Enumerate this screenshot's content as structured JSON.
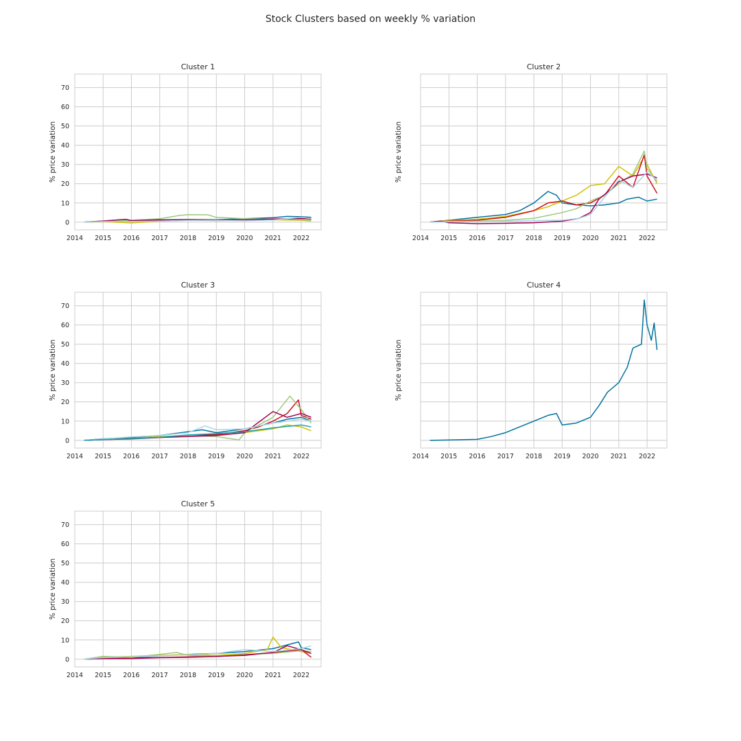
{
  "figure": {
    "title": "Stock Clusters based on weekly % variation"
  },
  "style": {
    "palette": [
      "#0173b2",
      "#de8f05",
      "#029e73",
      "#d55e00",
      "#cc78bc"
    ],
    "series_colors": [
      "#00719e",
      "#d1c000",
      "#cc0f1c",
      "#9fc77c",
      "#a40051",
      "#a6d6e6",
      "#16a1b6",
      "#e7a013"
    ],
    "grid_color": "#cccccc",
    "grid": true
  },
  "chart_data": [
    {
      "type": "line",
      "title": "Cluster 1",
      "ylabel": "% price variation",
      "xlabel": "",
      "xlim": [
        2014,
        2022.7
      ],
      "ylim": [
        -4,
        77
      ],
      "xticks": [
        "2014",
        "2015",
        "2016",
        "2017",
        "2018",
        "2019",
        "2020",
        "2021",
        "2022"
      ],
      "yticks": [
        "0",
        "10",
        "20",
        "30",
        "40",
        "50",
        "60",
        "70"
      ],
      "show_yticklabels": true,
      "series": [
        {
          "color": "#00719e",
          "x": [
            2014.33,
            2015,
            2016,
            2017,
            2018,
            2019,
            2020,
            2021,
            2021.5,
            2022,
            2022.35
          ],
          "values": [
            0,
            0.6,
            0.9,
            1.2,
            1.4,
            1.3,
            1.8,
            2.3,
            3.0,
            2.8,
            2.5
          ]
        },
        {
          "color": "#d1c000",
          "x": [
            2014.33,
            2015,
            2016,
            2017,
            2018,
            2019,
            2020,
            2021,
            2022,
            2022.35
          ],
          "values": [
            0,
            0.2,
            -0.4,
            0.5,
            1.0,
            0.8,
            0.9,
            1.2,
            1.0,
            0.6
          ]
        },
        {
          "color": "#cc0f1c",
          "x": [
            2014.33,
            2015,
            2016,
            2017,
            2018,
            2019,
            2020,
            2021,
            2022,
            2022.35
          ],
          "values": [
            0,
            0.4,
            0.8,
            1.0,
            1.3,
            1.1,
            1.0,
            1.5,
            2.0,
            1.6
          ]
        },
        {
          "color": "#9fc77c",
          "x": [
            2014.33,
            2015,
            2016,
            2017,
            2017.7,
            2018,
            2018.7,
            2019,
            2020,
            2021,
            2022,
            2022.35
          ],
          "values": [
            0,
            0.5,
            1.0,
            1.8,
            3.5,
            3.9,
            3.8,
            2.5,
            1.8,
            1.5,
            1.2,
            1.0
          ]
        },
        {
          "color": "#a40051",
          "x": [
            2014.33,
            2015,
            2015.8,
            2016,
            2017,
            2018,
            2019,
            2020,
            2021,
            2022,
            2022.35
          ],
          "values": [
            0,
            0.6,
            1.5,
            0.8,
            1.2,
            1.0,
            0.9,
            1.2,
            1.6,
            1.9,
            1.8
          ]
        },
        {
          "color": "#a6d6e6",
          "x": [
            2014.33,
            2015,
            2016,
            2017,
            2018,
            2019,
            2020,
            2021,
            2022,
            2022.35
          ],
          "values": [
            0,
            0.3,
            0.4,
            0.6,
            0.9,
            1.0,
            0.7,
            1.1,
            2.5,
            1.9
          ]
        }
      ]
    },
    {
      "type": "line",
      "title": "Cluster 2",
      "ylabel": "% price variation",
      "xlabel": "",
      "xlim": [
        2014,
        2022.7
      ],
      "ylim": [
        -4,
        77
      ],
      "xticks": [
        "2014",
        "2015",
        "2016",
        "2017",
        "2018",
        "2019",
        "2020",
        "2021",
        "2022"
      ],
      "yticks": [],
      "show_yticklabels": false,
      "series": [
        {
          "color": "#00719e",
          "x": [
            2014.33,
            2015,
            2016,
            2017,
            2017.5,
            2018,
            2018.5,
            2018.8,
            2019,
            2019.5,
            2020,
            2020.5,
            2021,
            2021.3,
            2021.7,
            2022,
            2022.35
          ],
          "values": [
            0,
            1.0,
            2.5,
            4.0,
            6.0,
            10.0,
            16.0,
            14.0,
            10.0,
            9.0,
            8.5,
            9.0,
            10.0,
            12.0,
            13.0,
            11.0,
            12.0
          ]
        },
        {
          "color": "#d1c000",
          "x": [
            2014.33,
            2015,
            2016,
            2017,
            2018,
            2018.5,
            2019,
            2019.5,
            2020,
            2020.5,
            2021,
            2021.5,
            2021.9,
            2022,
            2022.35
          ],
          "values": [
            0,
            0.8,
            1.5,
            3.0,
            6.0,
            8.0,
            11.0,
            14.0,
            19.0,
            20.0,
            29.0,
            24.0,
            34.0,
            30.0,
            20.0
          ]
        },
        {
          "color": "#cc0f1c",
          "x": [
            2014.33,
            2015,
            2016,
            2017,
            2018,
            2018.5,
            2019,
            2019.5,
            2020,
            2020.5,
            2021,
            2021.5,
            2021.9,
            2022,
            2022.35
          ],
          "values": [
            0,
            0.5,
            1.0,
            2.5,
            6.0,
            10.0,
            11.0,
            9.0,
            10.0,
            14.0,
            24.0,
            18.0,
            35.0,
            24.0,
            15.0
          ]
        },
        {
          "color": "#9fc77c",
          "x": [
            2014.33,
            2015,
            2016,
            2017,
            2018,
            2018.5,
            2019,
            2019.5,
            2020,
            2020.5,
            2021,
            2021.5,
            2021.9,
            2022,
            2022.35
          ],
          "values": [
            0,
            0.3,
            0.5,
            1.0,
            2.0,
            3.5,
            5.0,
            7.0,
            11.0,
            14.0,
            20.0,
            25.0,
            37.0,
            28.0,
            21.0
          ]
        },
        {
          "color": "#a40051",
          "x": [
            2014.33,
            2014.7,
            2015,
            2016,
            2017,
            2018,
            2019,
            2019.6,
            2020,
            2020.3,
            2020.8,
            2021,
            2021.5,
            2022,
            2022.35
          ],
          "values": [
            0,
            0.6,
            -0.3,
            -0.8,
            -0.6,
            -0.3,
            0.5,
            2.0,
            5.0,
            12.0,
            18.0,
            21.0,
            24.0,
            25.0,
            23.0
          ]
        },
        {
          "color": "#a6d6e6",
          "x": [
            2014.33,
            2015,
            2016,
            2017,
            2018,
            2019,
            2019.6,
            2020,
            2020.5,
            2021,
            2021.5,
            2022,
            2022.35
          ],
          "values": [
            0,
            0.2,
            0.3,
            0.5,
            0.8,
            1.0,
            2.0,
            4.0,
            13.0,
            22.0,
            18.0,
            26.0,
            22.0
          ]
        }
      ]
    },
    {
      "type": "line",
      "title": "Cluster 3",
      "ylabel": "% price variation",
      "xlabel": "",
      "xlim": [
        2014,
        2022.7
      ],
      "ylim": [
        -4,
        77
      ],
      "xticks": [
        "2014",
        "2015",
        "2016",
        "2017",
        "2018",
        "2019",
        "2020",
        "2021",
        "2022"
      ],
      "yticks": [
        "0",
        "10",
        "20",
        "30",
        "40",
        "50",
        "60",
        "70"
      ],
      "show_yticklabels": true,
      "series": [
        {
          "color": "#00719e",
          "x": [
            2014.33,
            2015,
            2016,
            2017,
            2018,
            2018.5,
            2019,
            2020,
            2021,
            2021.5,
            2022,
            2022.35
          ],
          "values": [
            0,
            0.8,
            1.5,
            2.5,
            4.5,
            5.5,
            4.0,
            6.0,
            9.0,
            11.0,
            12.0,
            10.0
          ]
        },
        {
          "color": "#d1c000",
          "x": [
            2014.33,
            2015,
            2016,
            2017,
            2018,
            2019,
            2020,
            2021,
            2021.5,
            2022,
            2022.35
          ],
          "values": [
            0,
            0.5,
            1.0,
            2.0,
            2.5,
            3.0,
            4.0,
            6.0,
            8.0,
            7.0,
            5.0
          ]
        },
        {
          "color": "#cc0f1c",
          "x": [
            2014.33,
            2015,
            2016,
            2017,
            2018,
            2019,
            2020,
            2020.5,
            2021,
            2021.5,
            2021.9,
            2022,
            2022.35
          ],
          "values": [
            0,
            0.5,
            1.0,
            1.5,
            2.5,
            3.0,
            5.0,
            7.0,
            10.0,
            14.0,
            21.0,
            13.0,
            11.0
          ]
        },
        {
          "color": "#9fc77c",
          "x": [
            2014.33,
            2015,
            2016,
            2017,
            2018,
            2019,
            2019.8,
            2020,
            2020.5,
            2021,
            2021.6,
            2022,
            2022.35
          ],
          "values": [
            0,
            0.4,
            0.6,
            1.5,
            2.5,
            2.0,
            0.2,
            4.0,
            8.0,
            12.0,
            23.0,
            16.0,
            9.0
          ]
        },
        {
          "color": "#a40051",
          "x": [
            2014.33,
            2015,
            2016,
            2017,
            2018,
            2019,
            2020,
            2021,
            2021.5,
            2022,
            2022.35
          ],
          "values": [
            0,
            0.3,
            0.8,
            1.5,
            2.0,
            2.5,
            4.0,
            15.0,
            12.0,
            14.0,
            12.0
          ]
        },
        {
          "color": "#a6d6e6",
          "x": [
            2014.33,
            2015,
            2016,
            2017,
            2018,
            2018.6,
            2019,
            2020,
            2021,
            2022,
            2022.35
          ],
          "values": [
            0,
            0.7,
            1.8,
            2.5,
            4.0,
            7.5,
            5.5,
            6.0,
            9.0,
            11.0,
            10.0
          ]
        },
        {
          "color": "#16a1b6",
          "x": [
            2014.33,
            2015,
            2016,
            2017,
            2018,
            2019,
            2020,
            2021,
            2022,
            2022.35
          ],
          "values": [
            0,
            0.4,
            0.9,
            1.6,
            2.8,
            3.5,
            4.5,
            6.5,
            8.0,
            7.0
          ]
        }
      ]
    },
    {
      "type": "line",
      "title": "Cluster 4",
      "ylabel": "% price variation",
      "xlabel": "",
      "xlim": [
        2014,
        2022.7
      ],
      "ylim": [
        -4,
        77
      ],
      "xticks": [
        "2014",
        "2015",
        "2016",
        "2017",
        "2018",
        "2019",
        "2020",
        "2021",
        "2022"
      ],
      "yticks": [],
      "show_yticklabels": false,
      "series": [
        {
          "color": "#00719e",
          "x": [
            2014.33,
            2015,
            2016,
            2016.5,
            2017,
            2017.5,
            2018,
            2018.5,
            2018.8,
            2019,
            2019.5,
            2020,
            2020.3,
            2020.6,
            2021,
            2021.3,
            2021.5,
            2021.8,
            2021.9,
            2022,
            2022.15,
            2022.25,
            2022.35
          ],
          "values": [
            0,
            0.2,
            0.5,
            2.0,
            4.0,
            7.0,
            10.0,
            13.0,
            14.0,
            8.0,
            9.0,
            12.0,
            18.0,
            25.0,
            30.0,
            38.0,
            48.0,
            50.0,
            73.0,
            60.0,
            52.0,
            61.0,
            47.0
          ]
        }
      ]
    },
    {
      "type": "line",
      "title": "Cluster 5",
      "ylabel": "% price variation",
      "xlabel": "",
      "xlim": [
        2014,
        2022.7
      ],
      "ylim": [
        -4,
        77
      ],
      "xticks": [
        "2014",
        "2015",
        "2016",
        "2017",
        "2018",
        "2019",
        "2020",
        "2021",
        "2022"
      ],
      "yticks": [
        "0",
        "10",
        "20",
        "30",
        "40",
        "50",
        "60",
        "70"
      ],
      "show_yticklabels": true,
      "series": [
        {
          "color": "#00719e",
          "x": [
            2014.33,
            2015,
            2016,
            2017,
            2018,
            2019,
            2020,
            2021,
            2021.9,
            2022,
            2022.35
          ],
          "values": [
            0,
            0.6,
            1.0,
            1.8,
            2.5,
            3.0,
            4.0,
            5.5,
            9.0,
            6.0,
            5.0
          ]
        },
        {
          "color": "#d1c000",
          "x": [
            2014.33,
            2015,
            2016,
            2017,
            2018,
            2019,
            2020,
            2020.8,
            2021,
            2021.3,
            2022,
            2022.35
          ],
          "values": [
            0,
            1.0,
            1.5,
            2.0,
            2.5,
            2.0,
            3.0,
            5.0,
            11.5,
            6.0,
            4.0,
            3.0
          ]
        },
        {
          "color": "#cc0f1c",
          "x": [
            2014.33,
            2015,
            2016,
            2017,
            2018,
            2019,
            2020,
            2021,
            2022,
            2022.35
          ],
          "values": [
            0,
            0.4,
            0.7,
            0.9,
            1.2,
            1.5,
            2.0,
            3.5,
            5.0,
            1.0
          ]
        },
        {
          "color": "#9fc77c",
          "x": [
            2014.33,
            2015,
            2016,
            2017,
            2017.6,
            2018,
            2019,
            2020,
            2021,
            2022,
            2022.35
          ],
          "values": [
            0,
            1.5,
            1.0,
            2.5,
            3.5,
            2.0,
            1.5,
            2.5,
            3.0,
            4.5,
            4.0
          ]
        },
        {
          "color": "#a40051",
          "x": [
            2014.33,
            2015,
            2016,
            2017,
            2018,
            2019,
            2020,
            2021,
            2021.5,
            2022,
            2022.35
          ],
          "values": [
            0,
            0.3,
            0.4,
            0.8,
            1.0,
            1.4,
            2.2,
            3.5,
            7.0,
            5.0,
            3.0
          ]
        },
        {
          "color": "#a6d6e6",
          "x": [
            2014.33,
            2015,
            2016,
            2017,
            2018,
            2019,
            2020,
            2021,
            2022,
            2022.35
          ],
          "values": [
            0,
            0.8,
            1.2,
            1.8,
            2.2,
            3.0,
            5.0,
            4.0,
            5.5,
            7.0
          ]
        }
      ]
    }
  ]
}
